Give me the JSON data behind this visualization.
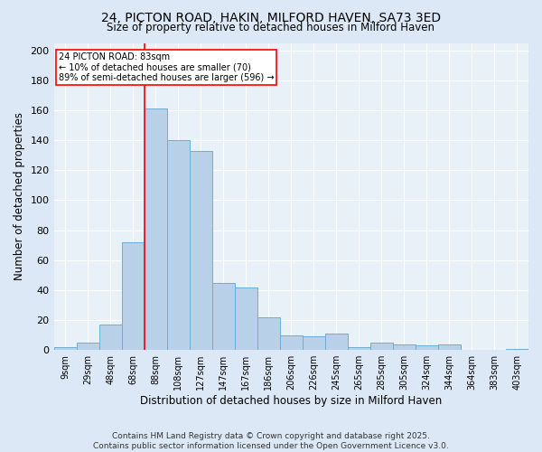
{
  "title": "24, PICTON ROAD, HAKIN, MILFORD HAVEN, SA73 3ED",
  "subtitle": "Size of property relative to detached houses in Milford Haven",
  "xlabel": "Distribution of detached houses by size in Milford Haven",
  "ylabel": "Number of detached properties",
  "bar_labels": [
    "9sqm",
    "29sqm",
    "48sqm",
    "68sqm",
    "88sqm",
    "108sqm",
    "127sqm",
    "147sqm",
    "167sqm",
    "186sqm",
    "206sqm",
    "226sqm",
    "245sqm",
    "265sqm",
    "285sqm",
    "305sqm",
    "324sqm",
    "344sqm",
    "364sqm",
    "383sqm",
    "403sqm"
  ],
  "bar_values": [
    2,
    5,
    17,
    72,
    161,
    140,
    133,
    45,
    42,
    22,
    10,
    9,
    11,
    2,
    5,
    4,
    3,
    4,
    0,
    0,
    1
  ],
  "bar_color": "#b8d0e8",
  "bar_edge_color": "#6baed6",
  "vline_color": "red",
  "vline_position": 3.5,
  "annotation_text": "24 PICTON ROAD: 83sqm\n← 10% of detached houses are smaller (70)\n89% of semi-detached houses are larger (596) →",
  "annotation_box_color": "white",
  "annotation_box_edge": "red",
  "ylim": [
    0,
    205
  ],
  "yticks": [
    0,
    20,
    40,
    60,
    80,
    100,
    120,
    140,
    160,
    180,
    200
  ],
  "footer": "Contains HM Land Registry data © Crown copyright and database right 2025.\nContains public sector information licensed under the Open Government Licence v3.0.",
  "bg_color": "#dce8f5",
  "plot_bg_color": "#e8f0f8"
}
